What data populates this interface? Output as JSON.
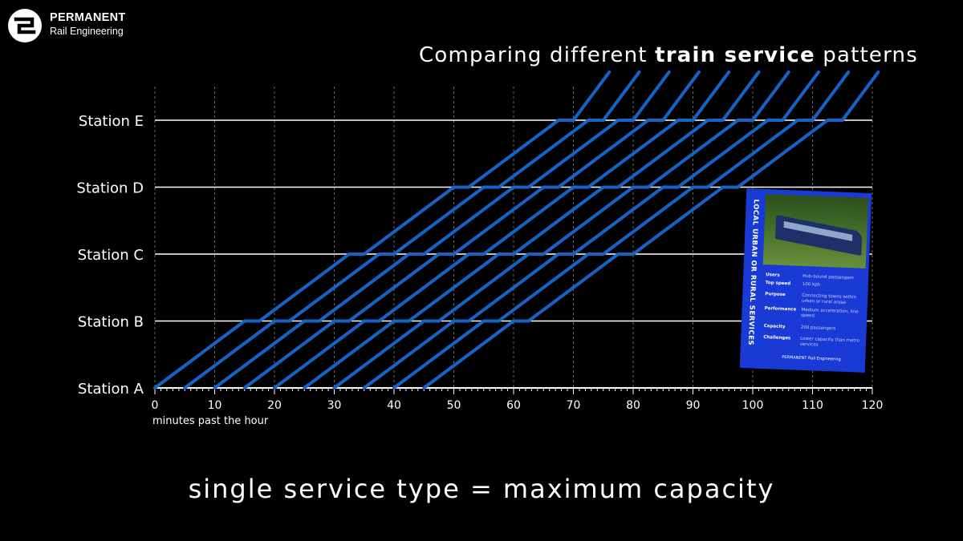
{
  "logo": {
    "line1": "PERMANENT",
    "line2": "Rail Engineering"
  },
  "title": {
    "prefix": "Comparing different ",
    "bold": "train service",
    "suffix": " patterns"
  },
  "subtitle": "single service type = maximum capacity",
  "colors": {
    "background": "#000000",
    "series": "#1663c7",
    "grid": "#ffffff"
  },
  "card": {
    "vertical_title": "LOCAL URBAN OR RURAL SERVICES",
    "rows": [
      {
        "k": "Users",
        "v": "Hub-bound passengers"
      },
      {
        "k": "Top speed",
        "v": "100 kph"
      },
      {
        "k": "Purpose",
        "v": "Connecting towns within urban or rural areas"
      },
      {
        "k": "Performance",
        "v": "Medium acceleration, line speed"
      },
      {
        "k": "Capacity",
        "v": "200 passengers"
      },
      {
        "k": "Challenges",
        "v": "Lower capacity than metro services"
      }
    ],
    "footer": "PERMANENT Rail Engineering"
  },
  "chart_data": {
    "type": "line",
    "xlabel": "minutes past the hour",
    "xlim": [
      0,
      120
    ],
    "x_ticks": [
      0,
      10,
      20,
      30,
      40,
      50,
      60,
      70,
      80,
      90,
      100,
      110,
      120
    ],
    "stations": [
      "Station A",
      "Station B",
      "Station C",
      "Station D",
      "Station E"
    ],
    "grid": true,
    "series": [
      {
        "points": [
          [
            0,
            0
          ],
          [
            15,
            1
          ],
          [
            17.5,
            1
          ],
          [
            32.5,
            2
          ],
          [
            35,
            2
          ],
          [
            50,
            3
          ],
          [
            52.5,
            3
          ],
          [
            67.5,
            4
          ],
          [
            70,
            4
          ],
          [
            76,
            4.72
          ]
        ]
      },
      {
        "points": [
          [
            5,
            0
          ],
          [
            20,
            1
          ],
          [
            22.5,
            1
          ],
          [
            37.5,
            2
          ],
          [
            40,
            2
          ],
          [
            55,
            3
          ],
          [
            57.5,
            3
          ],
          [
            72.5,
            4
          ],
          [
            75,
            4
          ],
          [
            81,
            4.72
          ]
        ]
      },
      {
        "points": [
          [
            10,
            0
          ],
          [
            25,
            1
          ],
          [
            27.5,
            1
          ],
          [
            42.5,
            2
          ],
          [
            45,
            2
          ],
          [
            60,
            3
          ],
          [
            62.5,
            3
          ],
          [
            77.5,
            4
          ],
          [
            80,
            4
          ],
          [
            86,
            4.72
          ]
        ]
      },
      {
        "points": [
          [
            15,
            0
          ],
          [
            30,
            1
          ],
          [
            32.5,
            1
          ],
          [
            47.5,
            2
          ],
          [
            50,
            2
          ],
          [
            65,
            3
          ],
          [
            67.5,
            3
          ],
          [
            82.5,
            4
          ],
          [
            85,
            4
          ],
          [
            91,
            4.72
          ]
        ]
      },
      {
        "points": [
          [
            20,
            0
          ],
          [
            35,
            1
          ],
          [
            37.5,
            1
          ],
          [
            52.5,
            2
          ],
          [
            55,
            2
          ],
          [
            70,
            3
          ],
          [
            72.5,
            3
          ],
          [
            87.5,
            4
          ],
          [
            90,
            4
          ],
          [
            96,
            4.72
          ]
        ]
      },
      {
        "points": [
          [
            25,
            0
          ],
          [
            40,
            1
          ],
          [
            42.5,
            1
          ],
          [
            57.5,
            2
          ],
          [
            60,
            2
          ],
          [
            75,
            3
          ],
          [
            77.5,
            3
          ],
          [
            92.5,
            4
          ],
          [
            95,
            4
          ],
          [
            101,
            4.72
          ]
        ]
      },
      {
        "points": [
          [
            30,
            0
          ],
          [
            45,
            1
          ],
          [
            47.5,
            1
          ],
          [
            62.5,
            2
          ],
          [
            65,
            2
          ],
          [
            80,
            3
          ],
          [
            82.5,
            3
          ],
          [
            97.5,
            4
          ],
          [
            100,
            4
          ],
          [
            106,
            4.72
          ]
        ]
      },
      {
        "points": [
          [
            35,
            0
          ],
          [
            50,
            1
          ],
          [
            52.5,
            1
          ],
          [
            67.5,
            2
          ],
          [
            70,
            2
          ],
          [
            85,
            3
          ],
          [
            87.5,
            3
          ],
          [
            102.5,
            4
          ],
          [
            105,
            4
          ],
          [
            111,
            4.72
          ]
        ]
      },
      {
        "points": [
          [
            40,
            0
          ],
          [
            55,
            1
          ],
          [
            57.5,
            1
          ],
          [
            72.5,
            2
          ],
          [
            75,
            2
          ],
          [
            90,
            3
          ],
          [
            92.5,
            3
          ],
          [
            107.5,
            4
          ],
          [
            110,
            4
          ],
          [
            116,
            4.72
          ]
        ]
      },
      {
        "points": [
          [
            45,
            0
          ],
          [
            60,
            1
          ],
          [
            62.5,
            1
          ],
          [
            77.5,
            2
          ],
          [
            80,
            2
          ],
          [
            95,
            3
          ],
          [
            97.5,
            3
          ],
          [
            112.5,
            4
          ],
          [
            115,
            4
          ],
          [
            121,
            4.72
          ]
        ]
      }
    ]
  }
}
